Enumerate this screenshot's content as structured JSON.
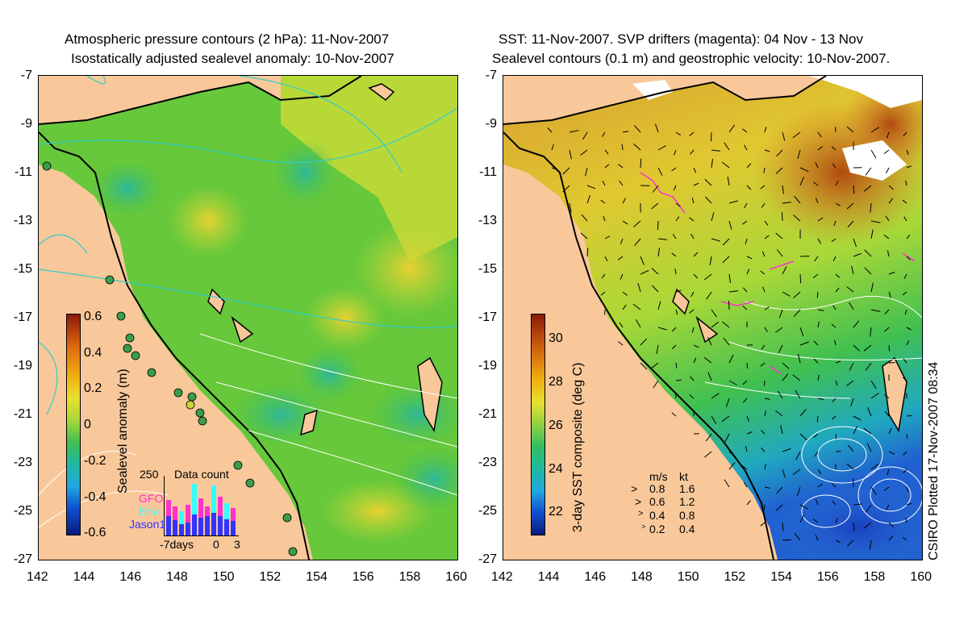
{
  "left_panel": {
    "title_line1": "Atmospheric pressure contours (2 hPa): 11-Nov-2007",
    "title_line2": "Isostatically adjusted sealevel anomaly: 10-Nov-2007",
    "colorbar_label": "Sealevel anomaly (m)",
    "colorbar_ticks": [
      "0.6",
      "0.4",
      "0.2",
      "0",
      "-0.2",
      "-0.4",
      "-0.6"
    ],
    "inset": {
      "title": "Data count",
      "ymax_label": "250",
      "legend": [
        "GFO",
        "Envi",
        "Jason1"
      ],
      "legend_colors": [
        "#ff33cc",
        "#33ffff",
        "#3333ff"
      ],
      "xlabels": [
        "-7days",
        "0",
        "3"
      ]
    }
  },
  "right_panel": {
    "title_line1": "SST: 11-Nov-2007. SVP drifters (magenta): 04 Nov - 13 Nov",
    "title_line2": "Sealevel contours (0.1 m) and geostrophic velocity: 10-Nov-2007.",
    "colorbar_label": "3-day SST composite (deg C)",
    "colorbar_ticks": [
      "30",
      "28",
      "26",
      "24",
      "22"
    ],
    "velocity_key": {
      "header_ms": "m/s",
      "header_kt": "kt",
      "rows": [
        {
          "ms": "0.8",
          "kt": "1.6"
        },
        {
          "ms": "0.6",
          "kt": "1.2"
        },
        {
          "ms": "0.4",
          "kt": "0.8"
        },
        {
          "ms": "0.2",
          "kt": "0.4"
        }
      ]
    }
  },
  "y_ticks": [
    "-7",
    "-9",
    "-11",
    "-13",
    "-15",
    "-17",
    "-19",
    "-21",
    "-23",
    "-25",
    "-27"
  ],
  "x_ticks": [
    "142",
    "144",
    "146",
    "148",
    "150",
    "152",
    "154",
    "156",
    "158",
    "160"
  ],
  "credit": "CSIRO Plotted 17-Nov-2007 08:34",
  "colors": {
    "land": "#f9c89a",
    "ocean_green": "#66cc33",
    "ocean_yellow": "#c8d838",
    "sst_orange": "#d87a28",
    "sst_blue": "#2a7ad8",
    "pressure_contour": "#33cccc",
    "drifter": "#ff33cc"
  }
}
